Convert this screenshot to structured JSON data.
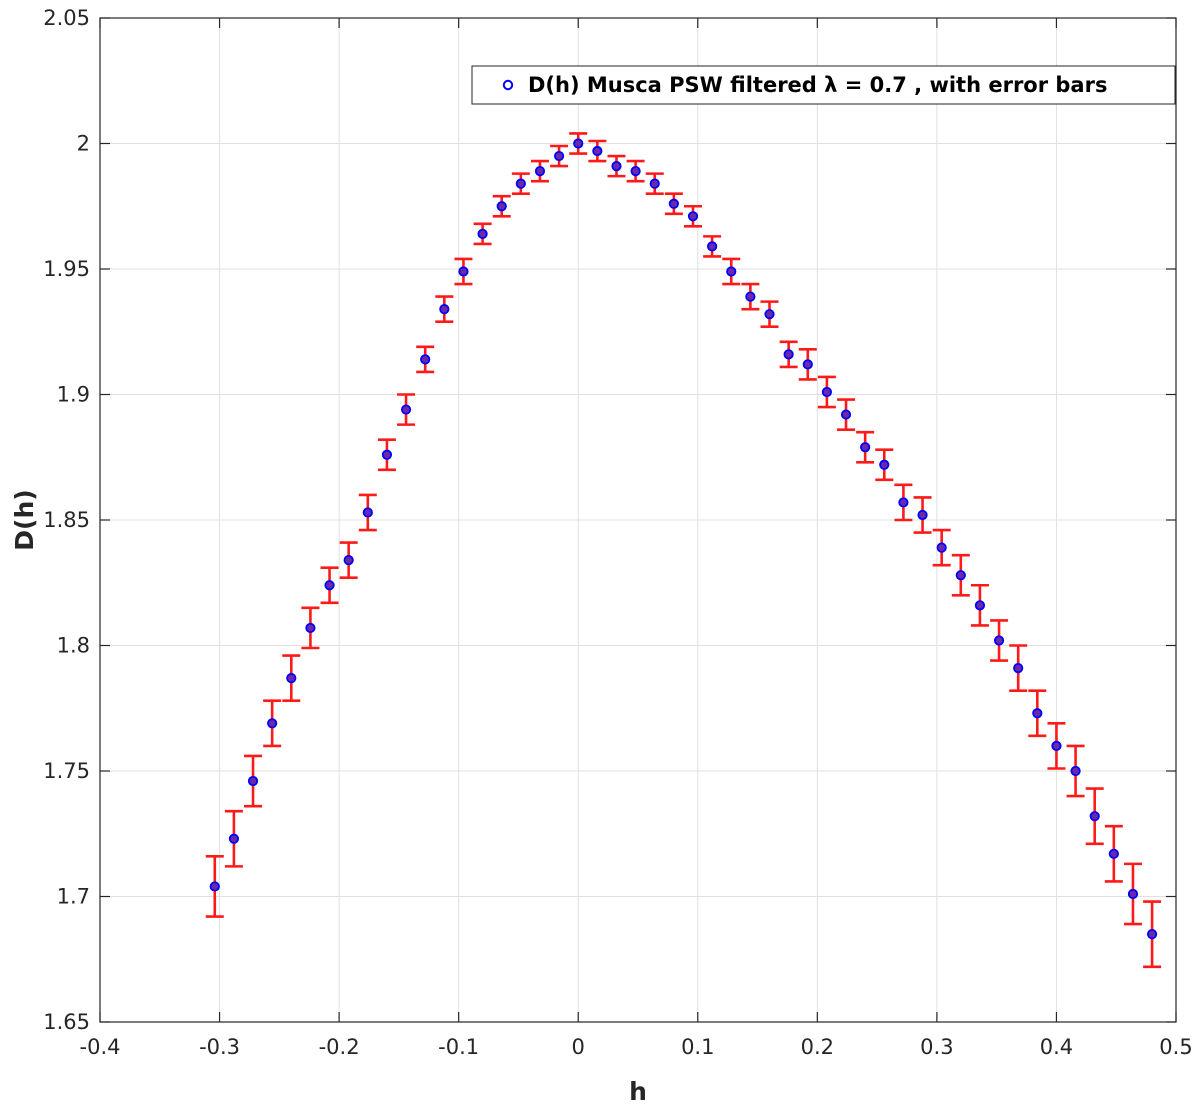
{
  "chart_data": {
    "type": "scatter",
    "title": "",
    "xlabel": "h",
    "ylabel": "D(h)",
    "xlim": [
      -0.4,
      0.5
    ],
    "ylim": [
      1.65,
      2.05
    ],
    "x_ticks": [
      -0.4,
      -0.3,
      -0.2,
      -0.1,
      0,
      0.1,
      0.2,
      0.3,
      0.4,
      0.5
    ],
    "x_tick_labels": [
      "-0.4",
      "-0.3",
      "-0.2",
      "-0.1",
      "0",
      "0.1",
      "0.2",
      "0.3",
      "0.4",
      "0.5"
    ],
    "y_ticks": [
      1.65,
      1.7,
      1.75,
      1.8,
      1.85,
      1.9,
      1.95,
      2,
      2.05
    ],
    "y_tick_labels": [
      "1.65",
      "1.7",
      "1.75",
      "1.8",
      "1.85",
      "1.9",
      "1.95",
      "2",
      "2.05"
    ],
    "grid": true,
    "legend_position": "top-right",
    "legend_label": "D(h) Musca PSW filtered λ = 0.7 , with error bars",
    "colors": {
      "marker_edge": "#0000ff",
      "marker_fill": "#6a2aa8",
      "error_bar": "#ff1a1a",
      "grid": "#e0e0e0",
      "axis": "#262626"
    },
    "series": [
      {
        "name": "D(h) Musca PSW filtered λ = 0.7 , with error bars",
        "x": [
          -0.304,
          -0.288,
          -0.272,
          -0.256,
          -0.24,
          -0.224,
          -0.208,
          -0.192,
          -0.176,
          -0.16,
          -0.144,
          -0.128,
          -0.112,
          -0.096,
          -0.08,
          -0.064,
          -0.048,
          -0.032,
          -0.016,
          0.0,
          0.016,
          0.032,
          0.048,
          0.064,
          0.08,
          0.096,
          0.112,
          0.128,
          0.144,
          0.16,
          0.176,
          0.192,
          0.208,
          0.224,
          0.24,
          0.256,
          0.272,
          0.288,
          0.304,
          0.32,
          0.336,
          0.352,
          0.368,
          0.384,
          0.4,
          0.416,
          0.432,
          0.448,
          0.464,
          0.48
        ],
        "y": [
          1.704,
          1.723,
          1.746,
          1.769,
          1.787,
          1.807,
          1.824,
          1.834,
          1.853,
          1.876,
          1.894,
          1.914,
          1.934,
          1.949,
          1.964,
          1.975,
          1.984,
          1.989,
          1.995,
          2.0,
          1.997,
          1.991,
          1.989,
          1.984,
          1.976,
          1.971,
          1.959,
          1.949,
          1.939,
          1.932,
          1.916,
          1.912,
          1.901,
          1.892,
          1.879,
          1.872,
          1.857,
          1.852,
          1.839,
          1.828,
          1.816,
          1.802,
          1.791,
          1.773,
          1.76,
          1.75,
          1.732,
          1.717,
          1.701,
          1.685
        ],
        "err": [
          0.012,
          0.011,
          0.01,
          0.009,
          0.009,
          0.008,
          0.007,
          0.007,
          0.007,
          0.006,
          0.006,
          0.005,
          0.005,
          0.005,
          0.004,
          0.004,
          0.004,
          0.004,
          0.004,
          0.004,
          0.004,
          0.004,
          0.004,
          0.004,
          0.004,
          0.004,
          0.004,
          0.005,
          0.005,
          0.005,
          0.005,
          0.006,
          0.006,
          0.006,
          0.006,
          0.006,
          0.007,
          0.007,
          0.007,
          0.008,
          0.008,
          0.008,
          0.009,
          0.009,
          0.009,
          0.01,
          0.011,
          0.011,
          0.012,
          0.013
        ]
      }
    ]
  }
}
